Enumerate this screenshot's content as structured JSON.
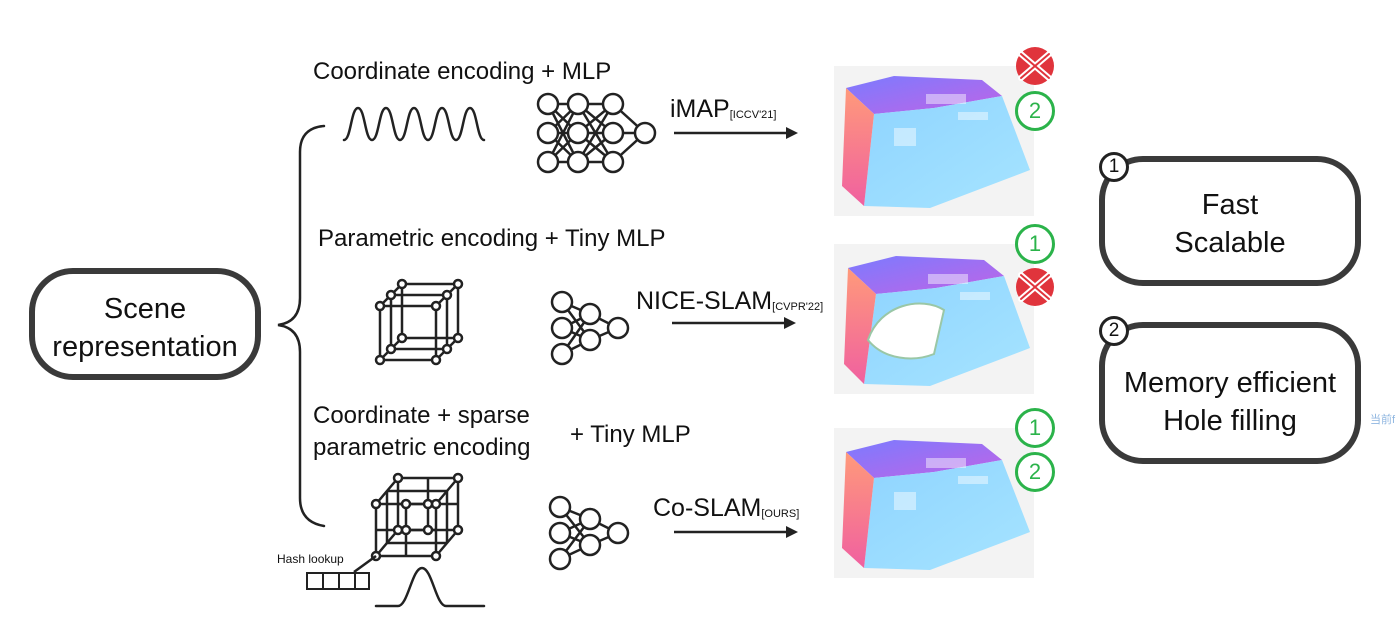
{
  "scene": {
    "line1": "Scene",
    "line2": "representation"
  },
  "rows": [
    {
      "title": "Coordinate encoding + MLP",
      "method": "iMAP",
      "venue": "[ICCV'21]"
    },
    {
      "title": "Parametric encoding + Tiny MLP",
      "method": "NICE-SLAM",
      "venue": "[CVPR'22]"
    },
    {
      "title_line1": "Coordinate + sparse",
      "title_line2": "parametric encoding",
      "title_suffix": "+  Tiny MLP",
      "method": "Co-SLAM",
      "venue": "[OURS]"
    }
  ],
  "badges": {
    "row1_top": "✕",
    "row1_bottom": "2",
    "row2_top": "1",
    "row2_bottom": "✕",
    "row3_top": "1",
    "row3_bottom": "2"
  },
  "hash_label": "Hash lookup",
  "properties": [
    {
      "num": "1",
      "line1": "Fast",
      "line2": "Scalable"
    },
    {
      "num": "2",
      "line1": "Memory efficient",
      "line2": "Hole filling"
    }
  ],
  "watermark": "当前f",
  "colors": {
    "green": "#2bb34a",
    "red": "#e0343c",
    "box_border": "#3a3a3a"
  }
}
